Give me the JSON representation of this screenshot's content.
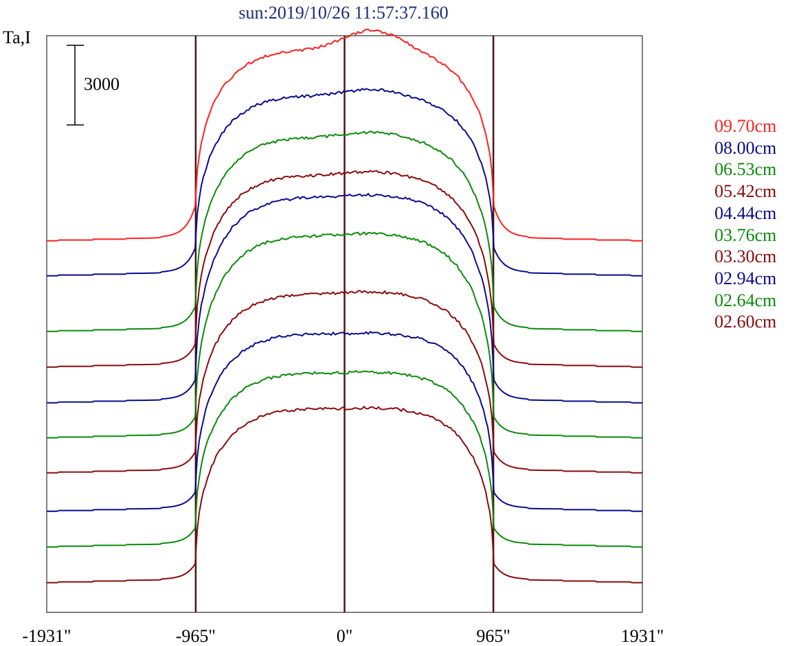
{
  "chart_data": {
    "type": "line",
    "title": "sun:2019/10/26 11:57:37.160",
    "ylabel": "Ta,I",
    "scale_bar_label": "3000",
    "x_ticks": [
      "-1931\"",
      "-965\"",
      "0\"",
      "965\"",
      "1931\""
    ],
    "x_tick_values": [
      -1931,
      -965,
      0,
      965,
      1931
    ],
    "xlim": [
      -1931,
      1931
    ],
    "vlines": [
      -965,
      0,
      965
    ],
    "grid": false,
    "legend_position": "right",
    "colors": {
      "red": "#ff2020",
      "blue": "#0a0a8c",
      "green": "#0a8a0a",
      "brown": "#8a0a0a",
      "vline": "#4a1414"
    },
    "series": [
      {
        "name": "09.70cm",
        "color": "#ff2020",
        "offset": 352,
        "disk": 230,
        "limb_min": 32,
        "center_bump": 30
      },
      {
        "name": "08.00cm",
        "color": "#0a0a8c",
        "offset": 403,
        "disk": 225,
        "limb_min": 25,
        "center_bump": 10
      },
      {
        "name": "06.53cm",
        "color": "#0a8a0a",
        "offset": 484,
        "disk": 250,
        "limb_min": 22,
        "center_bump": 8
      },
      {
        "name": "05.42cm",
        "color": "#8a0a0a",
        "offset": 536,
        "disk": 250,
        "limb_min": 20,
        "center_bump": 6
      },
      {
        "name": "04.44cm",
        "color": "#0a0a8c",
        "offset": 588,
        "disk": 270,
        "limb_min": 20,
        "center_bump": 4
      },
      {
        "name": "03.76cm",
        "color": "#0a8a0a",
        "offset": 639,
        "disk": 268,
        "limb_min": 18,
        "center_bump": 4
      },
      {
        "name": "03.30cm",
        "color": "#8a0a0a",
        "offset": 690,
        "disk": 234,
        "limb_min": 18,
        "center_bump": 4
      },
      {
        "name": "02.94cm",
        "color": "#0a0a8c",
        "offset": 746,
        "disk": 235,
        "limb_min": 16,
        "center_bump": 2
      },
      {
        "name": "02.64cm",
        "color": "#0a8a0a",
        "offset": 798,
        "disk": 230,
        "limb_min": 16,
        "center_bump": 2
      },
      {
        "name": "02.60cm",
        "color": "#8a0a0a",
        "offset": 850,
        "disk": 230,
        "limb_min": 16,
        "center_bump": 2
      }
    ]
  }
}
